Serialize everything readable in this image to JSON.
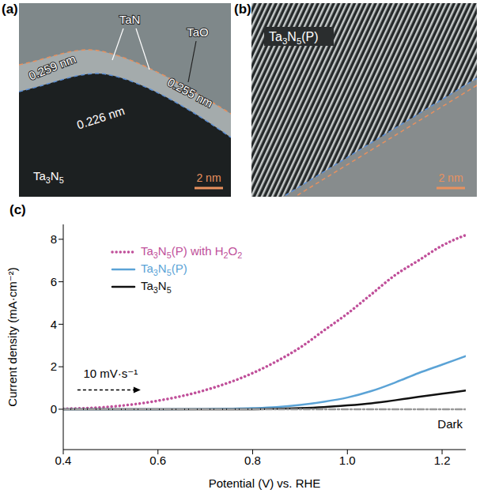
{
  "panels": [
    {
      "label": "(a)",
      "type": "image",
      "texts": [
        "TaN",
        "TaO",
        "0.259 nm",
        "0.226 nm",
        "0.255 nm",
        "Ta3N5"
      ],
      "scale_bar": "2 nm"
    },
    {
      "label": "(b)",
      "type": "image",
      "texts": [
        "Ta3N5(P)"
      ],
      "scale_bar": "2 nm"
    }
  ],
  "chart_data": {
    "panel_label": "(c)",
    "type": "line",
    "xlabel": "Potential (V) vs. RHE",
    "ylabel": "Current density (mA·cm⁻²)",
    "x": [
      0.4,
      0.5,
      0.6,
      0.7,
      0.8,
      0.85,
      0.9,
      0.95,
      1.0,
      1.05,
      1.1,
      1.15,
      1.2,
      1.25
    ],
    "xlim": [
      0.4,
      1.25
    ],
    "xticks": [
      0.4,
      0.6,
      0.8,
      {
        "value": 1,
        "label": "1.0"
      },
      1.2
    ],
    "ylim": [
      -1.9,
      8.7
    ],
    "yticks": [
      0,
      2,
      4,
      6,
      8
    ],
    "grid": false,
    "legend": "upper left",
    "series": [
      {
        "name": "Ta3N5(P) with H2O2",
        "color": "#c0509a",
        "line_style": "dotted",
        "values": [
          0.02,
          0.12,
          0.4,
          0.9,
          1.7,
          2.25,
          2.9,
          3.7,
          4.5,
          5.4,
          6.3,
          7.0,
          7.7,
          8.2
        ]
      },
      {
        "name": "Ta3N5(P)",
        "color": "#5ba3d6",
        "line_style": "solid",
        "values": [
          0,
          0,
          0,
          0.01,
          0.05,
          0.1,
          0.2,
          0.35,
          0.55,
          0.85,
          1.25,
          1.7,
          2.1,
          2.5
        ]
      },
      {
        "name": "Ta3N5",
        "color": "#111111",
        "line_style": "solid",
        "values": [
          0,
          0,
          0,
          0,
          0,
          0.02,
          0.05,
          0.1,
          0.18,
          0.28,
          0.42,
          0.58,
          0.73,
          0.88
        ]
      },
      {
        "name": "Dark",
        "type": "baseline",
        "color": "#999999",
        "line_style": "dashdot",
        "values": [
          0,
          0,
          0,
          0,
          0,
          0,
          0,
          0,
          0,
          0,
          0,
          0,
          0,
          0
        ]
      }
    ],
    "annotations": [
      {
        "text": "10 mV·s⁻¹",
        "x": 0.5,
        "y": 1.5
      }
    ]
  }
}
